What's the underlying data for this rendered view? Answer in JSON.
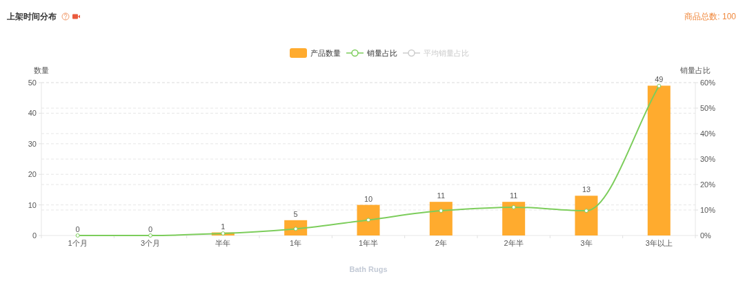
{
  "chart_data": {
    "type": "bar",
    "title": "上架时间分布",
    "annotations": [
      "商品总数: 100"
    ],
    "xlabel": "Bath Rugs",
    "ylabel": "数量",
    "y2label": "销量占比",
    "categories": [
      "1个月",
      "3个月",
      "半年",
      "1年",
      "1年半",
      "2年",
      "2年半",
      "3年",
      "3年以上"
    ],
    "series": [
      {
        "name": "产品数量",
        "color": "#ffab2e",
        "values": [
          0,
          0,
          1,
          5,
          10,
          11,
          11,
          13,
          49
        ],
        "value_labels": [
          "0",
          "0",
          "1",
          "5",
          "10",
          "11",
          "11",
          "13",
          "49"
        ]
      },
      {
        "name": "销量占比",
        "type": "line",
        "axis": "y2",
        "color": "#7ccd5b",
        "marker": "circle",
        "values": [
          0,
          0,
          0.8,
          2.6,
          6.1,
          9.7,
          11.1,
          9.7,
          58.7
        ]
      },
      {
        "name": "平均销量占比",
        "type": "line",
        "axis": "y2",
        "color": "#cccccc",
        "marker": "circle",
        "values": [
          null,
          null,
          null,
          null,
          null,
          null,
          null,
          null,
          null
        ]
      }
    ],
    "ylim": [
      0,
      50
    ],
    "yticks": [
      0,
      10,
      20,
      30,
      40,
      50
    ],
    "y2lim": [
      0,
      60
    ],
    "y2ticks": [
      {
        "value": 0,
        "label": "0%"
      },
      {
        "value": 10,
        "label": "10%"
      },
      {
        "value": 20,
        "label": "20%"
      },
      {
        "value": 30,
        "label": "30%"
      },
      {
        "value": 40,
        "label": "40%"
      },
      {
        "value": 50,
        "label": "50%"
      },
      {
        "value": 60,
        "label": "60%"
      }
    ],
    "grid": "y",
    "legend": "top"
  }
}
